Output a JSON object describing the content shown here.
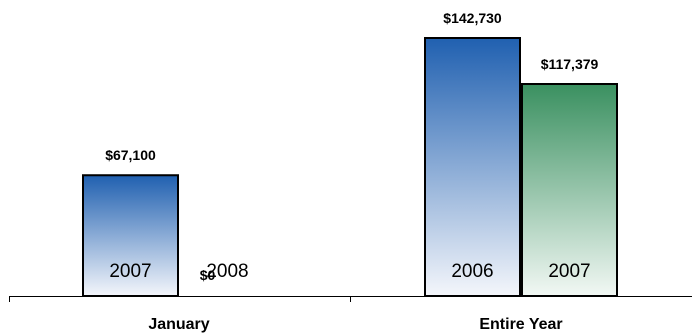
{
  "chart_data": {
    "type": "bar",
    "title": "",
    "xlabel": "",
    "ylabel": "",
    "ylim": [
      0,
      160000
    ],
    "grid": false,
    "legend": "none",
    "colors": {
      "blue_top": "#2060B0",
      "blue_bottom": "#F4F6FB",
      "green_top": "#3A9060",
      "green_bottom": "#F2F8F4",
      "outline": "#000000"
    },
    "categories": [
      {
        "label": "January",
        "bars": [
          {
            "year": "2007",
            "value": 67100,
            "value_label": "$67,100",
            "color": "blue"
          },
          {
            "year": "2008",
            "value": 0,
            "value_label": "$0",
            "color": "blue"
          }
        ]
      },
      {
        "label": "Entire Year",
        "bars": [
          {
            "year": "2006",
            "value": 142730,
            "value_label": "$142,730",
            "color": "blue"
          },
          {
            "year": "2007",
            "value": 117379,
            "value_label": "$117,379",
            "color": "green"
          }
        ]
      }
    ]
  }
}
